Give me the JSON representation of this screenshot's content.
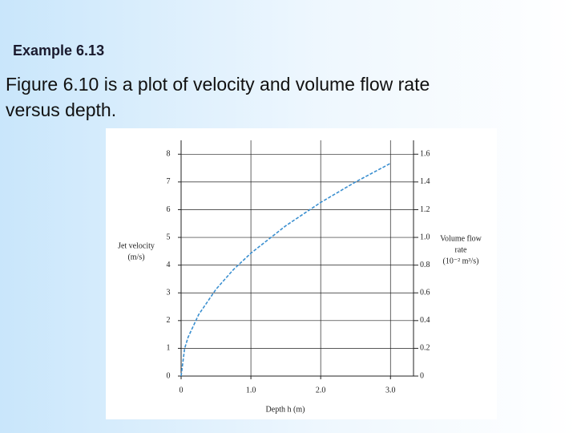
{
  "slide": {
    "heading": "Example 6.13",
    "body": [
      "Figure 6.10 is a plot of velocity and volume flow rate",
      "versus depth."
    ]
  },
  "chart_data": {
    "type": "line",
    "x": [
      0,
      0.05,
      0.1,
      0.25,
      0.5,
      0.75,
      1.0,
      1.5,
      2.0,
      2.5,
      3.0
    ],
    "series": [
      {
        "color": "#3a8fd0",
        "values": [
          0,
          0.99,
          1.4,
          2.21,
          3.13,
          3.84,
          4.43,
          5.42,
          6.26,
          7.0,
          7.67
        ]
      }
    ],
    "xlabel": "Depth h (m)",
    "ylabel": [
      "Jet velocity",
      "(m/s)"
    ],
    "y2label": [
      "Volume flow",
      "rate",
      "(10⁻² m³/s)"
    ],
    "xlim": [
      0,
      3.33
    ],
    "xticks": [
      0,
      {
        "value": 1,
        "label": "1.0"
      },
      {
        "value": 2,
        "label": "2.0"
      },
      {
        "value": 3,
        "label": "3.0"
      }
    ],
    "ylim": [
      0,
      8.5
    ],
    "yticks": [
      0,
      1,
      2,
      3,
      4,
      5,
      6,
      7,
      8
    ],
    "y2lim": [
      0,
      1.7
    ],
    "y2ticks": [
      0,
      0.2,
      0.4,
      0.6,
      0.8,
      {
        "value": 1,
        "label": "1.0"
      },
      1.2,
      1.4,
      1.6
    ],
    "grid": true,
    "dashed": true
  }
}
